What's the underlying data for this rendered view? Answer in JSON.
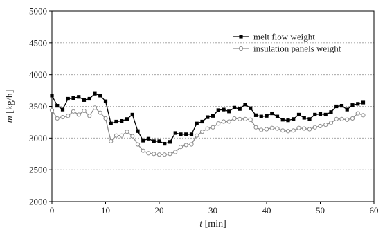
{
  "chart_data": {
    "type": "line",
    "xlabel_var": "t",
    "xlabel_unit": " [min]",
    "ylabel_var": "m",
    "ylabel_unit": " [kg/h]",
    "xlim": [
      0,
      60
    ],
    "ylim": [
      2000,
      5000
    ],
    "xticks": [
      0,
      10,
      20,
      30,
      40,
      50,
      60
    ],
    "yticks": [
      2000,
      2500,
      3000,
      3500,
      4000,
      4500,
      5000
    ],
    "grid": "horizontal dotted",
    "legend_position": "top-right",
    "series": [
      {
        "name": "melt flow weight",
        "color": "#000000",
        "marker": "square-filled",
        "x": [
          0,
          1,
          2,
          3,
          4,
          5,
          6,
          7,
          8,
          9,
          10,
          11,
          12,
          13,
          14,
          15,
          16,
          17,
          18,
          19,
          20,
          21,
          22,
          23,
          24,
          25,
          26,
          27,
          28,
          29,
          30,
          31,
          32,
          33,
          34,
          35,
          36,
          37,
          38,
          39,
          40,
          41,
          42,
          43,
          44,
          45,
          46,
          47,
          48,
          49,
          50,
          51,
          52,
          53,
          54,
          55,
          56,
          57,
          58
        ],
        "values": [
          3670,
          3510,
          3450,
          3620,
          3630,
          3650,
          3600,
          3620,
          3700,
          3670,
          3580,
          3230,
          3260,
          3270,
          3300,
          3370,
          3110,
          2960,
          2990,
          2950,
          2950,
          2910,
          2940,
          3080,
          3060,
          3060,
          3060,
          3230,
          3260,
          3330,
          3350,
          3440,
          3450,
          3420,
          3480,
          3460,
          3530,
          3470,
          3360,
          3340,
          3350,
          3390,
          3340,
          3290,
          3280,
          3300,
          3370,
          3320,
          3300,
          3370,
          3380,
          3370,
          3410,
          3500,
          3510,
          3450,
          3520,
          3540,
          3560
        ]
      },
      {
        "name": "insulation panels weight",
        "color": "#8c8c8c",
        "marker": "circle-open",
        "x": [
          0,
          1,
          2,
          3,
          4,
          5,
          6,
          7,
          8,
          9,
          10,
          11,
          12,
          13,
          14,
          15,
          16,
          17,
          18,
          19,
          20,
          21,
          22,
          23,
          24,
          25,
          26,
          27,
          28,
          29,
          30,
          31,
          32,
          33,
          34,
          35,
          36,
          37,
          38,
          39,
          40,
          41,
          42,
          43,
          44,
          45,
          46,
          47,
          48,
          49,
          50,
          51,
          52,
          53,
          54,
          55,
          56,
          57,
          58
        ],
        "values": [
          3440,
          3310,
          3330,
          3350,
          3420,
          3370,
          3430,
          3350,
          3480,
          3400,
          3310,
          2950,
          3040,
          3040,
          3100,
          3030,
          2900,
          2800,
          2760,
          2750,
          2740,
          2740,
          2750,
          2780,
          2860,
          2890,
          2900,
          3040,
          3100,
          3150,
          3170,
          3230,
          3260,
          3260,
          3310,
          3300,
          3300,
          3290,
          3170,
          3130,
          3140,
          3160,
          3150,
          3120,
          3110,
          3120,
          3160,
          3150,
          3140,
          3170,
          3190,
          3210,
          3240,
          3300,
          3300,
          3290,
          3310,
          3390,
          3360
        ]
      }
    ]
  }
}
